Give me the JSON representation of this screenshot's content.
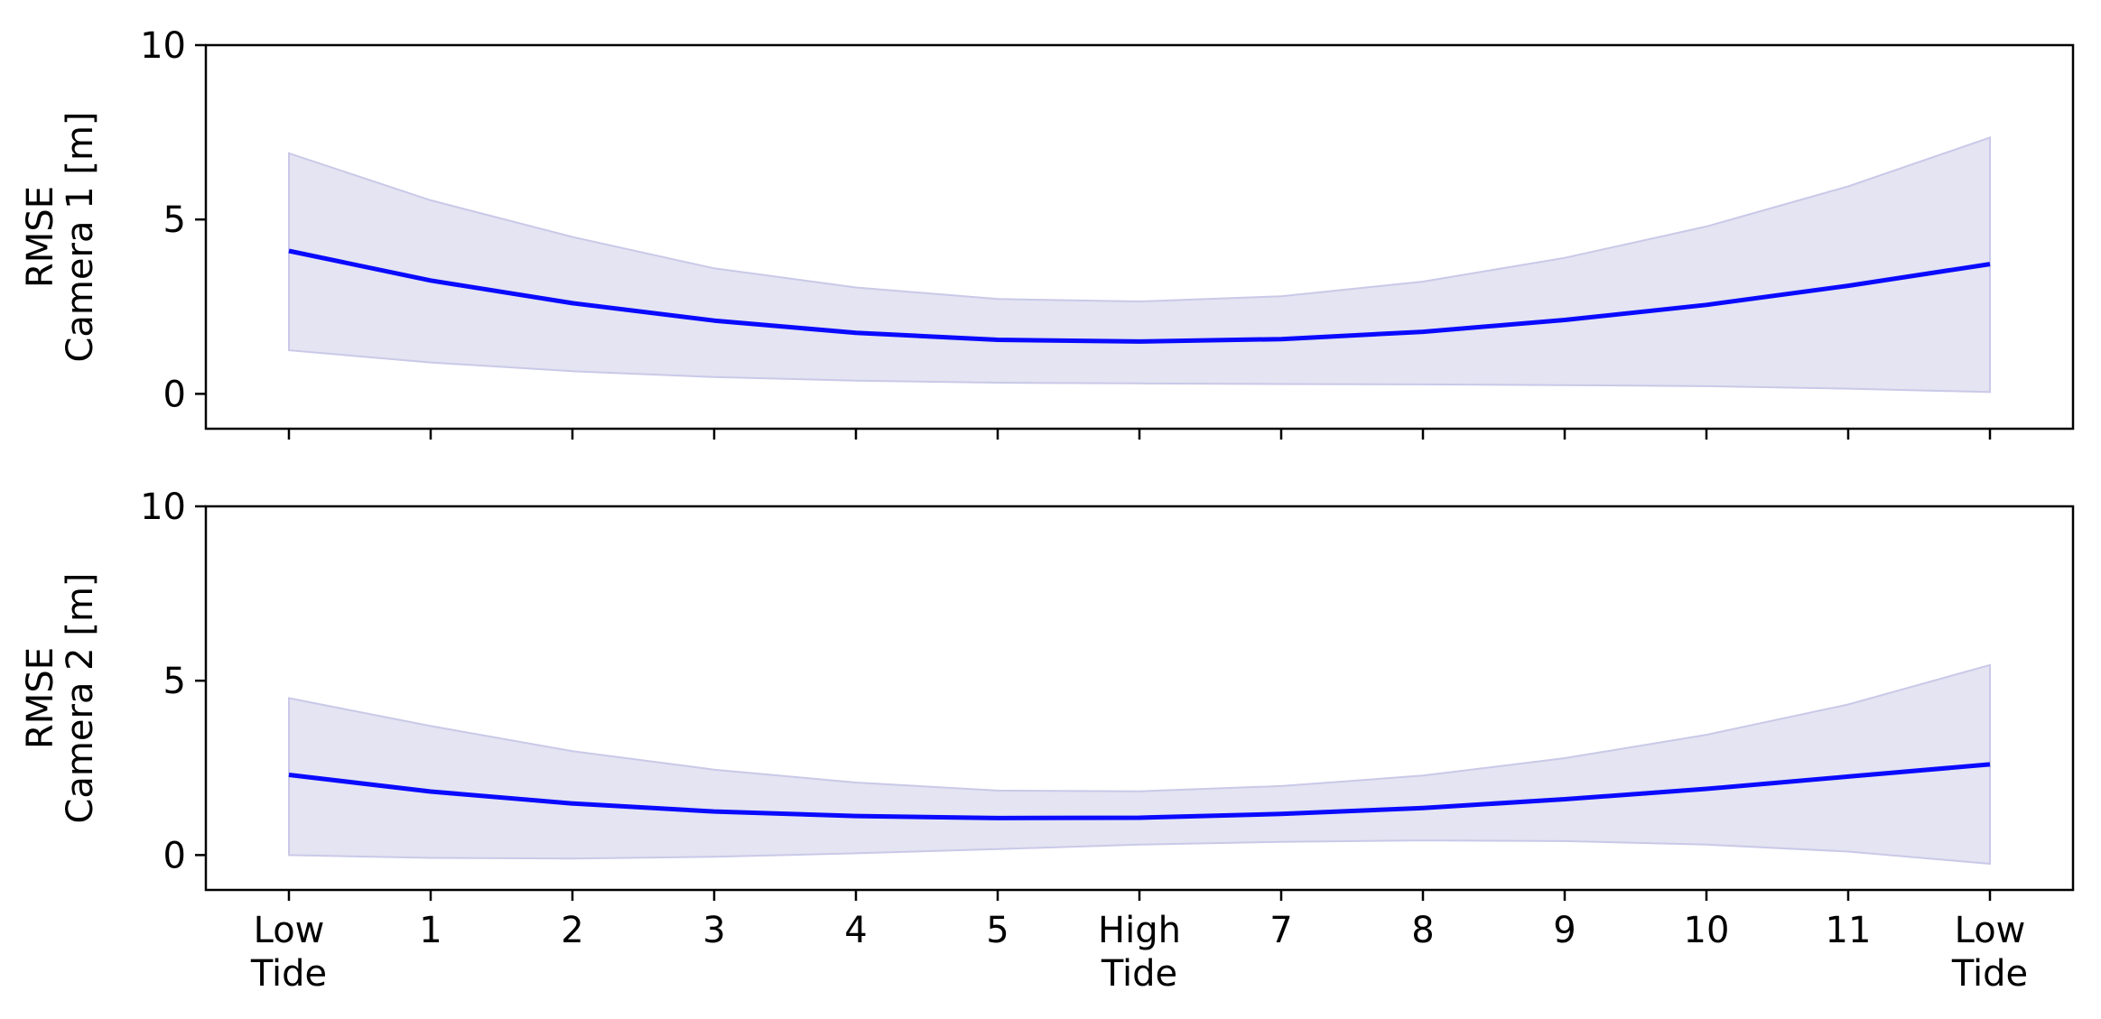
{
  "chart_data": {
    "type": "line",
    "x_categories": [
      "Low\nTide",
      "1",
      "2",
      "3",
      "4",
      "5",
      "High\nTide",
      "7",
      "8",
      "9",
      "10",
      "11",
      "Low\nTide"
    ],
    "x": [
      0,
      1,
      2,
      3,
      4,
      5,
      6,
      7,
      8,
      9,
      10,
      11,
      12
    ],
    "colors": {
      "line": "#0a0aff",
      "band": "#e4e4f2",
      "band_edge": "#c9c9e8"
    },
    "grid": false,
    "legend": "none",
    "panels": [
      {
        "ylabel_lines": [
          "RMSE",
          "Camera 1 [m]"
        ],
        "ylim": [
          -1,
          10
        ],
        "yticks": [
          0,
          5,
          10
        ],
        "show_x_ticklabels": false,
        "series": [
          {
            "mean": [
              4.1,
              3.25,
              2.6,
              2.1,
              1.75,
              1.55,
              1.5,
              1.57,
              1.78,
              2.12,
              2.55,
              3.1,
              3.72
            ],
            "upper": [
              6.9,
              5.55,
              4.5,
              3.6,
              3.05,
              2.72,
              2.65,
              2.8,
              3.22,
              3.9,
              4.8,
              5.95,
              7.35
            ],
            "lower": [
              1.25,
              0.9,
              0.65,
              0.48,
              0.38,
              0.32,
              0.3,
              0.28,
              0.27,
              0.25,
              0.22,
              0.15,
              0.05
            ]
          }
        ]
      },
      {
        "ylabel_lines": [
          "RMSE",
          "Camera 2 [m]"
        ],
        "ylim": [
          -1,
          10
        ],
        "yticks": [
          0,
          5,
          10
        ],
        "show_x_ticklabels": true,
        "series": [
          {
            "mean": [
              2.3,
              1.82,
              1.48,
              1.25,
              1.12,
              1.06,
              1.07,
              1.18,
              1.35,
              1.6,
              1.9,
              2.25,
              2.6
            ],
            "upper": [
              4.5,
              3.7,
              2.98,
              2.45,
              2.08,
              1.85,
              1.83,
              1.98,
              2.28,
              2.78,
              3.45,
              4.32,
              5.45
            ],
            "lower": [
              0.0,
              -0.08,
              -0.1,
              -0.05,
              0.05,
              0.17,
              0.3,
              0.38,
              0.42,
              0.4,
              0.3,
              0.1,
              -0.25
            ]
          }
        ]
      }
    ]
  }
}
